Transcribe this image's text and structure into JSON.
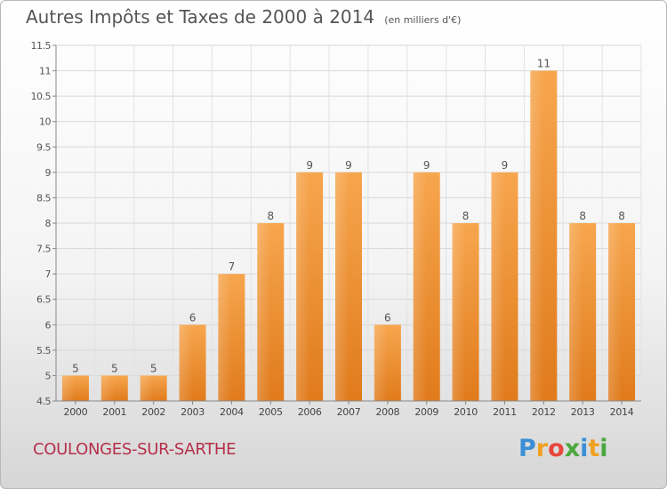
{
  "chart_data": {
    "type": "bar",
    "title": "Autres Impôts et Taxes de 2000 à 2014",
    "subtitle": "(en milliers d'€)",
    "categories": [
      "2000",
      "2001",
      "2002",
      "2003",
      "2004",
      "2005",
      "2006",
      "2007",
      "2008",
      "2009",
      "2010",
      "2011",
      "2012",
      "2013",
      "2014"
    ],
    "values": [
      5,
      5,
      5,
      6,
      7,
      8,
      9,
      9,
      6,
      9,
      8,
      9,
      11,
      8,
      8
    ],
    "ylim": [
      4.5,
      11.5
    ],
    "yticks": [
      "4.5",
      "5",
      "5.5",
      "6",
      "6.5",
      "7",
      "7.5",
      "8",
      "8.5",
      "9",
      "9.5",
      "10",
      "10.5",
      "11",
      "11.5"
    ],
    "grid": true,
    "bar_color": "#f39c3c"
  },
  "footer": {
    "commune": "COULONGES-SUR-SARTHE",
    "logo_letters": [
      "P",
      "r",
      "o",
      "x",
      "i",
      "t",
      "i"
    ],
    "logo_colors": [
      "#3a8fd6",
      "#f0a020",
      "#e8463c",
      "#4aa83c",
      "#3a8fd6",
      "#f0a020",
      "#4aa83c"
    ]
  }
}
